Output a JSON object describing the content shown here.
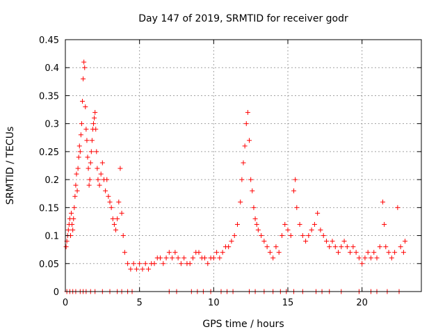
{
  "chart_data": {
    "type": "scatter",
    "title": "Day 147 of 2019, SRMTID for receiver godr",
    "xlabel": "GPS time / hours",
    "ylabel": "SRMTID / TECUs",
    "xlim": [
      0,
      24
    ],
    "ylim": [
      0,
      0.45
    ],
    "x_ticks": [
      {
        "value": 0,
        "label": "0"
      },
      {
        "value": 5,
        "label": "5"
      },
      {
        "value": 10,
        "label": "10"
      },
      {
        "value": 15,
        "label": "15"
      },
      {
        "value": 20,
        "label": "20"
      }
    ],
    "y_ticks": [
      {
        "value": 0,
        "label": "0"
      },
      {
        "value": 0.05,
        "label": "0.05"
      },
      {
        "value": 0.1,
        "label": "0.1"
      },
      {
        "value": 0.15,
        "label": "0.15"
      },
      {
        "value": 0.2,
        "label": "0.2"
      },
      {
        "value": 0.25,
        "label": "0.25"
      },
      {
        "value": 0.3,
        "label": "0.3"
      },
      {
        "value": 0.35,
        "label": "0.35"
      },
      {
        "value": 0.4,
        "label": "0.4"
      },
      {
        "value": 0.45,
        "label": "0.45"
      }
    ],
    "grid": true,
    "marker": "+",
    "color": "#ff0000",
    "series": [
      {
        "name": "SRMTID",
        "points": [
          [
            0.05,
            0.08
          ],
          [
            0.1,
            0.09
          ],
          [
            0.15,
            0.1
          ],
          [
            0.2,
            0.11
          ],
          [
            0.25,
            0.12
          ],
          [
            0.3,
            0.13
          ],
          [
            0.35,
            0.1
          ],
          [
            0.4,
            0.14
          ],
          [
            0.45,
            0.12
          ],
          [
            0.5,
            0.11
          ],
          [
            0.55,
            0.13
          ],
          [
            0.6,
            0.15
          ],
          [
            0.65,
            0.17
          ],
          [
            0.7,
            0.19
          ],
          [
            0.75,
            0.21
          ],
          [
            0.8,
            0.18
          ],
          [
            0.85,
            0.22
          ],
          [
            0.9,
            0.24
          ],
          [
            0.95,
            0.26
          ],
          [
            1.0,
            0.25
          ],
          [
            1.05,
            0.28
          ],
          [
            1.1,
            0.3
          ],
          [
            1.15,
            0.34
          ],
          [
            1.2,
            0.38
          ],
          [
            1.25,
            0.41
          ],
          [
            1.3,
            0.4
          ],
          [
            1.35,
            0.33
          ],
          [
            1.4,
            0.29
          ],
          [
            1.45,
            0.27
          ],
          [
            1.5,
            0.24
          ],
          [
            1.55,
            0.22
          ],
          [
            1.6,
            0.19
          ],
          [
            1.65,
            0.2
          ],
          [
            1.7,
            0.23
          ],
          [
            1.75,
            0.25
          ],
          [
            1.8,
            0.27
          ],
          [
            1.85,
            0.29
          ],
          [
            1.9,
            0.3
          ],
          [
            1.95,
            0.31
          ],
          [
            2.0,
            0.32
          ],
          [
            2.05,
            0.29
          ],
          [
            2.1,
            0.25
          ],
          [
            2.15,
            0.22
          ],
          [
            2.2,
            0.2
          ],
          [
            2.3,
            0.19
          ],
          [
            2.4,
            0.21
          ],
          [
            2.5,
            0.23
          ],
          [
            2.6,
            0.2
          ],
          [
            2.7,
            0.18
          ],
          [
            2.8,
            0.2
          ],
          [
            2.9,
            0.17
          ],
          [
            3.0,
            0.16
          ],
          [
            3.1,
            0.15
          ],
          [
            3.2,
            0.13
          ],
          [
            3.3,
            0.12
          ],
          [
            3.4,
            0.11
          ],
          [
            3.5,
            0.13
          ],
          [
            3.6,
            0.16
          ],
          [
            3.7,
            0.22
          ],
          [
            3.8,
            0.14
          ],
          [
            3.9,
            0.1
          ],
          [
            4.0,
            0.07
          ],
          [
            4.2,
            0.05
          ],
          [
            4.4,
            0.04
          ],
          [
            4.6,
            0.05
          ],
          [
            4.8,
            0.04
          ],
          [
            5.0,
            0.05
          ],
          [
            5.2,
            0.04
          ],
          [
            5.4,
            0.05
          ],
          [
            5.6,
            0.04
          ],
          [
            5.8,
            0.05
          ],
          [
            6.0,
            0.05
          ],
          [
            6.2,
            0.06
          ],
          [
            6.4,
            0.06
          ],
          [
            6.6,
            0.05
          ],
          [
            6.8,
            0.06
          ],
          [
            7.0,
            0.07
          ],
          [
            7.2,
            0.06
          ],
          [
            7.4,
            0.07
          ],
          [
            7.6,
            0.06
          ],
          [
            7.8,
            0.05
          ],
          [
            8.0,
            0.06
          ],
          [
            8.2,
            0.05
          ],
          [
            8.4,
            0.05
          ],
          [
            8.6,
            0.06
          ],
          [
            8.8,
            0.07
          ],
          [
            9.0,
            0.07
          ],
          [
            9.2,
            0.06
          ],
          [
            9.4,
            0.06
          ],
          [
            9.6,
            0.05
          ],
          [
            9.8,
            0.06
          ],
          [
            10.0,
            0.06
          ],
          [
            10.2,
            0.07
          ],
          [
            10.4,
            0.06
          ],
          [
            10.6,
            0.07
          ],
          [
            10.8,
            0.08
          ],
          [
            11.0,
            0.08
          ],
          [
            11.2,
            0.09
          ],
          [
            11.4,
            0.1
          ],
          [
            11.6,
            0.12
          ],
          [
            11.8,
            0.16
          ],
          [
            11.9,
            0.2
          ],
          [
            12.0,
            0.23
          ],
          [
            12.1,
            0.26
          ],
          [
            12.2,
            0.3
          ],
          [
            12.3,
            0.32
          ],
          [
            12.4,
            0.27
          ],
          [
            12.5,
            0.2
          ],
          [
            12.6,
            0.18
          ],
          [
            12.7,
            0.15
          ],
          [
            12.8,
            0.13
          ],
          [
            12.9,
            0.12
          ],
          [
            13.0,
            0.11
          ],
          [
            13.2,
            0.1
          ],
          [
            13.4,
            0.09
          ],
          [
            13.6,
            0.08
          ],
          [
            13.8,
            0.07
          ],
          [
            14.0,
            0.06
          ],
          [
            14.2,
            0.08
          ],
          [
            14.4,
            0.07
          ],
          [
            14.6,
            0.1
          ],
          [
            14.8,
            0.12
          ],
          [
            15.0,
            0.11
          ],
          [
            15.2,
            0.1
          ],
          [
            15.4,
            0.18
          ],
          [
            15.5,
            0.2
          ],
          [
            15.6,
            0.15
          ],
          [
            15.8,
            0.12
          ],
          [
            16.0,
            0.1
          ],
          [
            16.2,
            0.09
          ],
          [
            16.4,
            0.1
          ],
          [
            16.6,
            0.11
          ],
          [
            16.8,
            0.12
          ],
          [
            17.0,
            0.14
          ],
          [
            17.2,
            0.11
          ],
          [
            17.4,
            0.1
          ],
          [
            17.6,
            0.09
          ],
          [
            17.8,
            0.08
          ],
          [
            18.0,
            0.09
          ],
          [
            18.2,
            0.08
          ],
          [
            18.4,
            0.07
          ],
          [
            18.6,
            0.08
          ],
          [
            18.8,
            0.09
          ],
          [
            19.0,
            0.08
          ],
          [
            19.2,
            0.07
          ],
          [
            19.4,
            0.08
          ],
          [
            19.6,
            0.07
          ],
          [
            19.8,
            0.06
          ],
          [
            20.0,
            0.05
          ],
          [
            20.2,
            0.06
          ],
          [
            20.4,
            0.07
          ],
          [
            20.6,
            0.06
          ],
          [
            20.8,
            0.07
          ],
          [
            21.0,
            0.06
          ],
          [
            21.2,
            0.08
          ],
          [
            21.4,
            0.16
          ],
          [
            21.5,
            0.12
          ],
          [
            21.6,
            0.08
          ],
          [
            21.8,
            0.07
          ],
          [
            22.0,
            0.06
          ],
          [
            22.2,
            0.07
          ],
          [
            22.4,
            0.15
          ],
          [
            22.6,
            0.08
          ],
          [
            22.8,
            0.07
          ],
          [
            22.9,
            0.09
          ]
        ]
      },
      {
        "name": "baseline",
        "points": [
          [
            0.1,
            0
          ],
          [
            0.3,
            0
          ],
          [
            0.5,
            0
          ],
          [
            0.7,
            0
          ],
          [
            1.0,
            0
          ],
          [
            1.2,
            0
          ],
          [
            1.4,
            0
          ],
          [
            1.7,
            0
          ],
          [
            2.0,
            0
          ],
          [
            2.5,
            0
          ],
          [
            3.0,
            0
          ],
          [
            3.5,
            0
          ],
          [
            3.8,
            0
          ],
          [
            4.2,
            0
          ],
          [
            4.5,
            0
          ],
          [
            7.0,
            0
          ],
          [
            7.5,
            0
          ],
          [
            8.5,
            0
          ],
          [
            8.9,
            0
          ],
          [
            9.3,
            0
          ],
          [
            9.8,
            0
          ],
          [
            10.5,
            0
          ],
          [
            10.9,
            0
          ],
          [
            11.3,
            0
          ],
          [
            12.4,
            0
          ],
          [
            12.8,
            0
          ],
          [
            13.4,
            0
          ],
          [
            14.0,
            0
          ],
          [
            14.5,
            0
          ],
          [
            14.9,
            0
          ],
          [
            15.4,
            0
          ],
          [
            16.0,
            0
          ],
          [
            16.9,
            0
          ],
          [
            17.3,
            0
          ],
          [
            17.8,
            0
          ],
          [
            18.6,
            0
          ],
          [
            19.8,
            0
          ],
          [
            20.6,
            0
          ],
          [
            21.0,
            0
          ],
          [
            21.7,
            0
          ],
          [
            22.5,
            0
          ]
        ]
      }
    ]
  }
}
